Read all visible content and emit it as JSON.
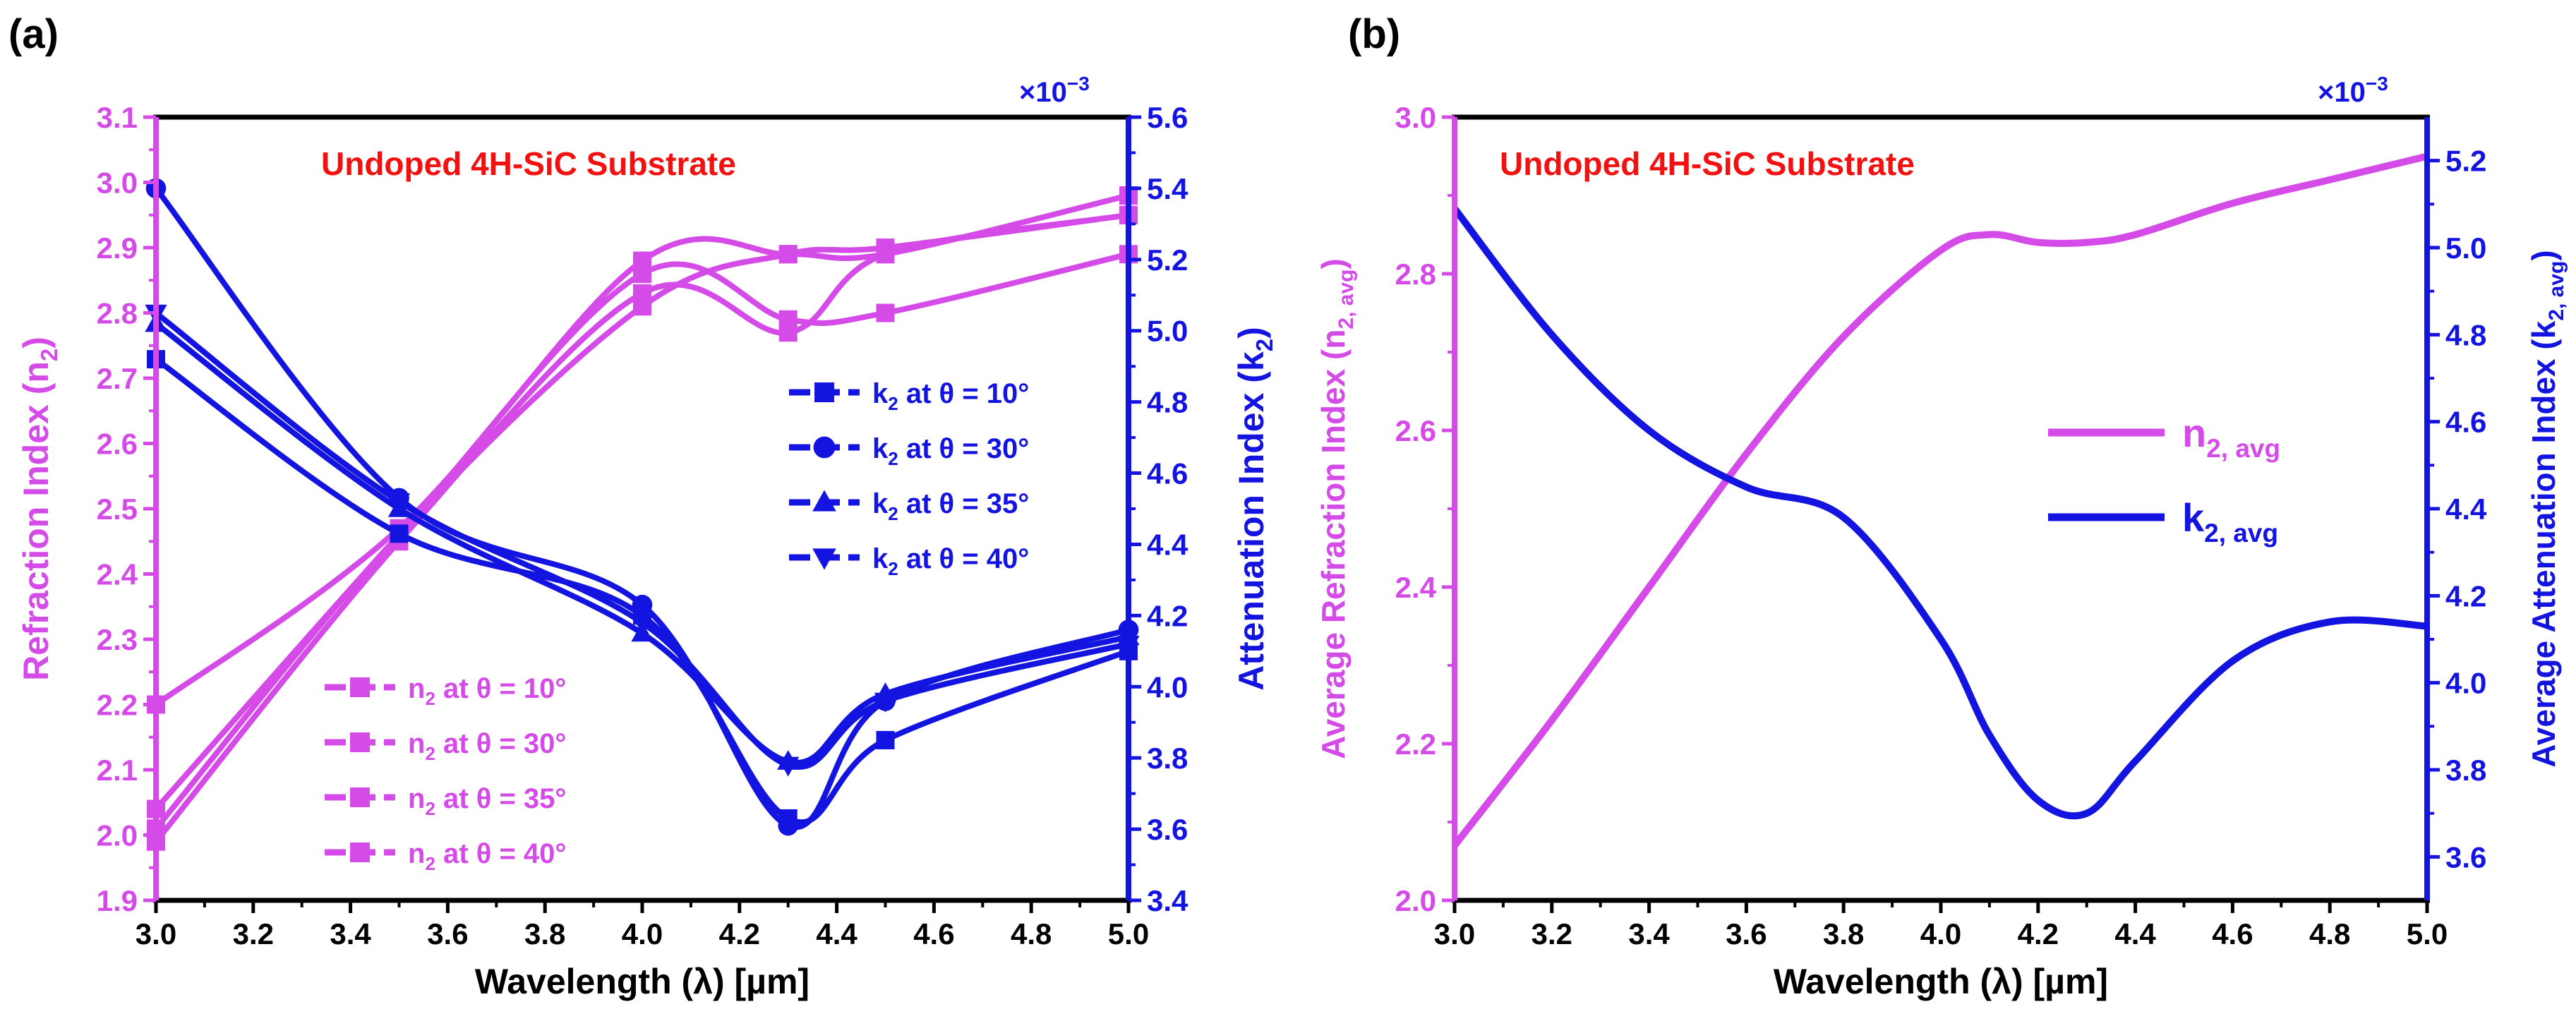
{
  "figure": {
    "colors": {
      "magenta": "#D54BE8",
      "blue": "#1414E0",
      "red": "#F21111",
      "black": "#000000"
    }
  },
  "chart_data": [
    {
      "panel_label": "(a)",
      "type": "line",
      "title": "Undoped 4H-SiC Substrate",
      "xlabel": "Wavelength (λ) [µm]",
      "ylabel_left": {
        "main": "Refraction Index (n",
        "sub": "2",
        "end": ")"
      },
      "ylabel_right": {
        "main": "Attenuation Index (k",
        "sub": "2",
        "end": ")"
      },
      "right_multiplier": {
        "base": "×10",
        "exp": "−3"
      },
      "xlim": [
        3.0,
        5.0
      ],
      "ylim_left": [
        1.9,
        3.1
      ],
      "ylim_right": [
        3.4,
        5.6
      ],
      "x_ticks": [
        "3.0",
        "3.2",
        "3.4",
        "3.6",
        "3.8",
        "4.0",
        "4.2",
        "4.4",
        "4.6",
        "4.8",
        "5.0"
      ],
      "y_left_ticks": [
        "1.9",
        "2.0",
        "2.1",
        "2.2",
        "2.3",
        "2.4",
        "2.5",
        "2.6",
        "2.7",
        "2.8",
        "2.9",
        "3.0",
        "3.1"
      ],
      "y_right_ticks": [
        "3.4",
        "3.6",
        "3.8",
        "4.0",
        "4.2",
        "4.4",
        "4.6",
        "4.8",
        "5.0",
        "5.2",
        "5.4",
        "5.6"
      ],
      "x": [
        3.0,
        3.5,
        4.0,
        4.3,
        4.5,
        5.0
      ],
      "series_left": [
        {
          "name": "n2 at θ = 10°",
          "label_main": "n",
          "label_sub": "2",
          "label_rest": " at θ = 10°",
          "marker": "square",
          "values": [
            2.2,
            2.47,
            2.88,
            2.89,
            2.89,
            2.98
          ]
        },
        {
          "name": "n2 at θ = 30°",
          "label_main": "n",
          "label_sub": "2",
          "label_rest": " at θ = 30°",
          "marker": "square",
          "values": [
            2.04,
            2.46,
            2.86,
            2.79,
            2.8,
            2.89
          ]
        },
        {
          "name": "n2 at θ = 35°",
          "label_main": "n",
          "label_sub": "2",
          "label_rest": " at θ = 35°",
          "marker": "square",
          "values": [
            2.01,
            2.46,
            2.81,
            2.89,
            2.9,
            2.95
          ]
        },
        {
          "name": "n2 at θ = 40°",
          "label_main": "n",
          "label_sub": "2",
          "label_rest": " at θ = 40°",
          "marker": "square",
          "values": [
            1.99,
            2.45,
            2.83,
            2.77,
            2.89,
            2.95
          ]
        }
      ],
      "series_right": [
        {
          "name": "k2 at θ = 10°",
          "label_main": "k",
          "label_sub": "2",
          "label_rest": " at θ = 10°",
          "marker": "square",
          "values": [
            4.92,
            4.43,
            4.2,
            3.63,
            3.85,
            4.1
          ]
        },
        {
          "name": "k2 at θ = 30°",
          "label_main": "k",
          "label_sub": "2",
          "label_rest": " at θ = 30°",
          "marker": "circle",
          "values": [
            5.4,
            4.53,
            4.23,
            3.61,
            3.96,
            4.16
          ]
        },
        {
          "name": "k2 at θ = 35°",
          "label_main": "k",
          "label_sub": "2",
          "label_rest": " at θ = 35°",
          "marker": "triangle-up",
          "values": [
            5.02,
            4.5,
            4.15,
            3.79,
            3.98,
            4.14
          ]
        },
        {
          "name": "k2 at θ = 40°",
          "label_main": "k",
          "label_sub": "2",
          "label_rest": " at θ = 40°",
          "marker": "triangle-down",
          "values": [
            5.05,
            4.52,
            4.18,
            3.78,
            3.96,
            4.12
          ]
        }
      ]
    },
    {
      "panel_label": "(b)",
      "type": "line",
      "title": "Undoped 4H-SiC Substrate",
      "xlabel": "Wavelength (λ) [µm]",
      "ylabel_left": {
        "main": "Average Refraction Index (n",
        "sub": "2, avg",
        "end": ")"
      },
      "ylabel_right": {
        "main": "Average Attenuation Index (k",
        "sub": "2, avg",
        "end": ")"
      },
      "right_multiplier": {
        "base": "×10",
        "exp": "−3"
      },
      "xlim": [
        3.0,
        5.0
      ],
      "ylim_left": [
        2.0,
        3.0
      ],
      "ylim_right": [
        3.5,
        5.3
      ],
      "x_ticks": [
        "3.0",
        "3.2",
        "3.4",
        "3.6",
        "3.8",
        "4.0",
        "4.2",
        "4.4",
        "4.6",
        "4.8",
        "5.0"
      ],
      "y_left_ticks": [
        "2.0",
        "2.2",
        "2.4",
        "2.6",
        "2.8",
        "3.0"
      ],
      "y_right_ticks": [
        "3.6",
        "3.8",
        "4.0",
        "4.2",
        "4.4",
        "4.6",
        "4.8",
        "5.0",
        "5.2"
      ],
      "x": [
        3.0,
        3.2,
        3.4,
        3.6,
        3.8,
        4.0,
        4.1,
        4.2,
        4.3,
        4.4,
        4.6,
        4.8,
        5.0
      ],
      "series_left": [
        {
          "name": "n2, avg",
          "label_main": "n",
          "label_sub": "2, avg",
          "label_rest": "",
          "values": [
            2.07,
            2.23,
            2.4,
            2.57,
            2.72,
            2.83,
            2.85,
            2.84,
            2.84,
            2.85,
            2.89,
            2.92,
            2.95
          ]
        }
      ],
      "series_right": [
        {
          "name": "k2, avg",
          "label_main": "k",
          "label_sub": "2, avg",
          "label_rest": "",
          "values": [
            5.09,
            4.8,
            4.58,
            4.45,
            4.38,
            4.1,
            3.88,
            3.73,
            3.7,
            3.82,
            4.05,
            4.14,
            4.13
          ]
        }
      ]
    }
  ]
}
